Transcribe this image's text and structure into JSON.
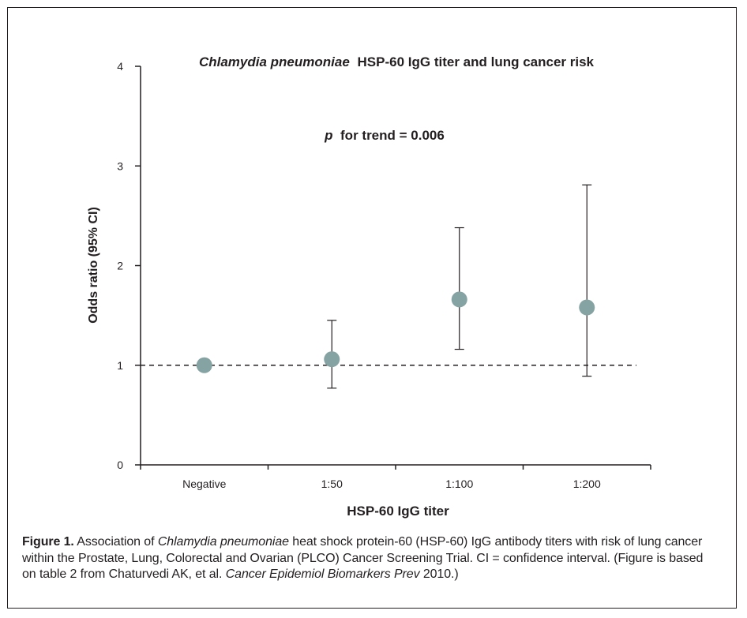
{
  "chart_data": {
    "type": "scatter",
    "title": "HSP-60 IgG titer and lung cancer risk",
    "title_italic_prefix": "Chlamydia pneumoniae",
    "annotation_italic": "p",
    "annotation_rest": " for trend = 0.006",
    "xlabel": "HSP-60 IgG titer",
    "ylabel": "Odds ratio (95% CI)",
    "categories": [
      "Negative",
      "1:50",
      "1:100",
      "1:200"
    ],
    "series": [
      {
        "values": [
          1.0,
          1.06,
          1.66,
          1.58
        ],
        "ci_lower": [
          null,
          0.77,
          1.16,
          0.89
        ],
        "ci_upper": [
          null,
          1.45,
          2.38,
          2.81
        ]
      }
    ],
    "reference_line": 1,
    "ylim": [
      0,
      4
    ],
    "yticks": [
      0,
      1,
      2,
      3,
      4
    ],
    "grid": false,
    "marker_color": "#86a3a3",
    "line_color": "#231f20"
  },
  "caption": {
    "label": "Figure 1.",
    "part1": " Association of ",
    "italic1": "Chlamydia pneumoniae",
    "part2": " heat shock protein-60 (HSP-60) IgG antibody titers with risk of lung cancer within the Prostate, Lung, Colorectal and Ovarian (PLCO) Cancer Screening Trial. CI = confidence interval. (Figure is based on table 2 from Chaturvedi AK, et al. ",
    "italic2": "Cancer Epidemiol Biomarkers Prev",
    "part3": " 2010.)"
  }
}
